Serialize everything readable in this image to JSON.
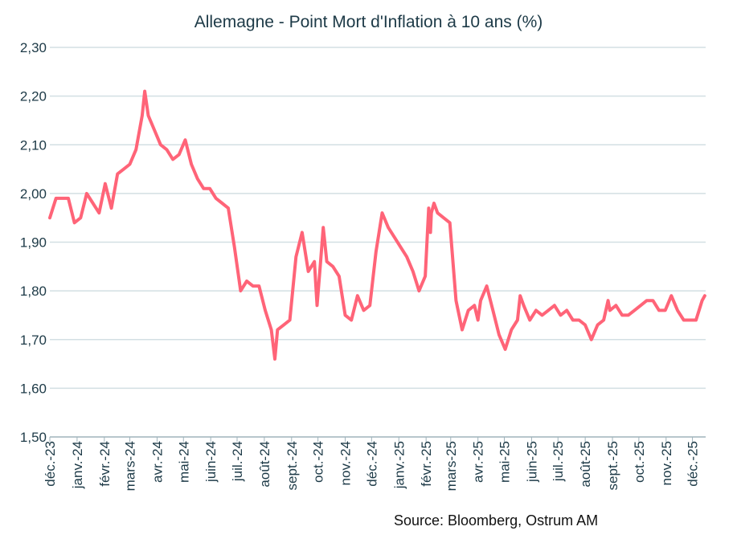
{
  "chart_data": {
    "type": "line",
    "title": "Allemagne - Point Mort d'Inflation à 10 ans (%)",
    "source": "Source: Bloomberg, Ostrum AM",
    "ylim": [
      1.5,
      2.3
    ],
    "xlim": [
      "2023-12-01",
      "2025-12-16"
    ],
    "y_ticks": [
      "1,50",
      "1,60",
      "1,70",
      "1,80",
      "1,90",
      "2,00",
      "2,10",
      "2,20",
      "2,30"
    ],
    "x_ticks": [
      {
        "date": "2023-12-01",
        "label": "déc.-23"
      },
      {
        "date": "2024-01-01",
        "label": "janv.-24"
      },
      {
        "date": "2024-02-01",
        "label": "févr.-24"
      },
      {
        "date": "2024-03-01",
        "label": "mars-24"
      },
      {
        "date": "2024-04-01",
        "label": "avr.-24"
      },
      {
        "date": "2024-05-01",
        "label": "mai-24"
      },
      {
        "date": "2024-06-01",
        "label": "juin-24"
      },
      {
        "date": "2024-07-01",
        "label": "juil.-24"
      },
      {
        "date": "2024-08-01",
        "label": "août-24"
      },
      {
        "date": "2024-09-01",
        "label": "sept.-24"
      },
      {
        "date": "2024-10-01",
        "label": "oct.-24"
      },
      {
        "date": "2024-11-01",
        "label": "nov.-24"
      },
      {
        "date": "2024-12-01",
        "label": "déc.-24"
      },
      {
        "date": "2025-01-01",
        "label": "janv.-25"
      },
      {
        "date": "2025-02-01",
        "label": "févr.-25"
      },
      {
        "date": "2025-03-01",
        "label": "mars-25"
      },
      {
        "date": "2025-04-01",
        "label": "avr.-25"
      },
      {
        "date": "2025-05-01",
        "label": "mai-25"
      },
      {
        "date": "2025-06-01",
        "label": "juin-25"
      },
      {
        "date": "2025-07-01",
        "label": "juil.-25"
      },
      {
        "date": "2025-08-01",
        "label": "août-25"
      },
      {
        "date": "2025-09-01",
        "label": "sept.-25"
      },
      {
        "date": "2025-10-01",
        "label": "oct.-25"
      },
      {
        "date": "2025-11-01",
        "label": "nov.-25"
      },
      {
        "date": "2025-12-01",
        "label": "déc.-25"
      }
    ],
    "grid": true,
    "line_color": "#ff6478",
    "series": [
      {
        "points": [
          [
            "2023-12-01",
            1.95
          ],
          [
            "2023-12-08",
            1.99
          ],
          [
            "2023-12-15",
            1.99
          ],
          [
            "2023-12-22",
            1.99
          ],
          [
            "2023-12-29",
            1.94
          ],
          [
            "2024-01-05",
            1.95
          ],
          [
            "2024-01-12",
            2.0
          ],
          [
            "2024-01-19",
            1.98
          ],
          [
            "2024-01-26",
            1.96
          ],
          [
            "2024-02-02",
            2.02
          ],
          [
            "2024-02-09",
            1.97
          ],
          [
            "2024-02-16",
            2.04
          ],
          [
            "2024-02-23",
            2.05
          ],
          [
            "2024-03-01",
            2.06
          ],
          [
            "2024-03-08",
            2.09
          ],
          [
            "2024-03-15",
            2.16
          ],
          [
            "2024-03-18",
            2.21
          ],
          [
            "2024-03-22",
            2.16
          ],
          [
            "2024-03-29",
            2.13
          ],
          [
            "2024-04-05",
            2.1
          ],
          [
            "2024-04-12",
            2.09
          ],
          [
            "2024-04-19",
            2.07
          ],
          [
            "2024-04-26",
            2.08
          ],
          [
            "2024-05-03",
            2.11
          ],
          [
            "2024-05-10",
            2.06
          ],
          [
            "2024-05-17",
            2.03
          ],
          [
            "2024-05-24",
            2.01
          ],
          [
            "2024-05-31",
            2.01
          ],
          [
            "2024-06-07",
            1.99
          ],
          [
            "2024-06-14",
            1.98
          ],
          [
            "2024-06-21",
            1.97
          ],
          [
            "2024-06-28",
            1.89
          ],
          [
            "2024-07-05",
            1.8
          ],
          [
            "2024-07-12",
            1.82
          ],
          [
            "2024-07-19",
            1.81
          ],
          [
            "2024-07-26",
            1.81
          ],
          [
            "2024-08-02",
            1.76
          ],
          [
            "2024-08-09",
            1.72
          ],
          [
            "2024-08-13",
            1.66
          ],
          [
            "2024-08-16",
            1.72
          ],
          [
            "2024-08-23",
            1.73
          ],
          [
            "2024-08-30",
            1.74
          ],
          [
            "2024-09-06",
            1.87
          ],
          [
            "2024-09-13",
            1.92
          ],
          [
            "2024-09-20",
            1.84
          ],
          [
            "2024-09-27",
            1.86
          ],
          [
            "2024-09-30",
            1.77
          ],
          [
            "2024-10-04",
            1.86
          ],
          [
            "2024-10-07",
            1.93
          ],
          [
            "2024-10-11",
            1.86
          ],
          [
            "2024-10-18",
            1.85
          ],
          [
            "2024-10-25",
            1.83
          ],
          [
            "2024-11-01",
            1.75
          ],
          [
            "2024-11-08",
            1.74
          ],
          [
            "2024-11-15",
            1.79
          ],
          [
            "2024-11-22",
            1.76
          ],
          [
            "2024-11-29",
            1.77
          ],
          [
            "2024-12-06",
            1.88
          ],
          [
            "2024-12-13",
            1.96
          ],
          [
            "2024-12-20",
            1.93
          ],
          [
            "2024-12-27",
            1.91
          ],
          [
            "2025-01-03",
            1.89
          ],
          [
            "2025-01-10",
            1.87
          ],
          [
            "2025-01-17",
            1.84
          ],
          [
            "2025-01-24",
            1.8
          ],
          [
            "2025-01-31",
            1.83
          ],
          [
            "2025-02-04",
            1.97
          ],
          [
            "2025-02-06",
            1.92
          ],
          [
            "2025-02-07",
            1.96
          ],
          [
            "2025-02-10",
            1.98
          ],
          [
            "2025-02-14",
            1.96
          ],
          [
            "2025-02-21",
            1.95
          ],
          [
            "2025-02-28",
            1.94
          ],
          [
            "2025-03-07",
            1.78
          ],
          [
            "2025-03-14",
            1.72
          ],
          [
            "2025-03-21",
            1.76
          ],
          [
            "2025-03-28",
            1.77
          ],
          [
            "2025-04-01",
            1.74
          ],
          [
            "2025-04-04",
            1.78
          ],
          [
            "2025-04-11",
            1.81
          ],
          [
            "2025-04-18",
            1.76
          ],
          [
            "2025-04-25",
            1.71
          ],
          [
            "2025-05-02",
            1.68
          ],
          [
            "2025-05-09",
            1.72
          ],
          [
            "2025-05-16",
            1.74
          ],
          [
            "2025-05-19",
            1.79
          ],
          [
            "2025-05-23",
            1.77
          ],
          [
            "2025-05-30",
            1.74
          ],
          [
            "2025-06-06",
            1.76
          ],
          [
            "2025-06-13",
            1.75
          ],
          [
            "2025-06-20",
            1.76
          ],
          [
            "2025-06-27",
            1.77
          ],
          [
            "2025-07-04",
            1.75
          ],
          [
            "2025-07-11",
            1.76
          ],
          [
            "2025-07-18",
            1.74
          ],
          [
            "2025-07-25",
            1.74
          ],
          [
            "2025-08-01",
            1.73
          ],
          [
            "2025-08-08",
            1.7
          ],
          [
            "2025-08-15",
            1.73
          ],
          [
            "2025-08-22",
            1.74
          ],
          [
            "2025-08-27",
            1.78
          ],
          [
            "2025-08-29",
            1.76
          ],
          [
            "2025-09-05",
            1.77
          ],
          [
            "2025-09-12",
            1.75
          ],
          [
            "2025-09-19",
            1.75
          ],
          [
            "2025-09-26",
            1.76
          ],
          [
            "2025-10-03",
            1.77
          ],
          [
            "2025-10-10",
            1.78
          ],
          [
            "2025-10-17",
            1.78
          ],
          [
            "2025-10-24",
            1.76
          ],
          [
            "2025-10-31",
            1.76
          ],
          [
            "2025-11-07",
            1.79
          ],
          [
            "2025-11-14",
            1.76
          ],
          [
            "2025-11-21",
            1.74
          ],
          [
            "2025-11-28",
            1.74
          ],
          [
            "2025-12-05",
            1.74
          ],
          [
            "2025-12-12",
            1.78
          ],
          [
            "2025-12-15",
            1.79
          ]
        ]
      }
    ]
  }
}
